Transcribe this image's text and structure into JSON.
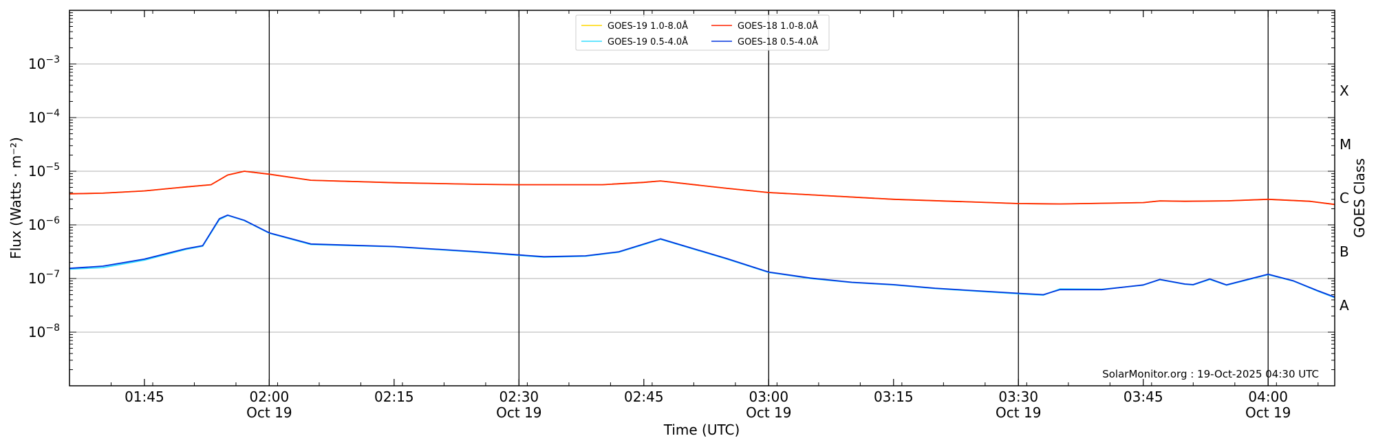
{
  "chart_data": {
    "type": "line",
    "xlabel": "Time (UTC)",
    "ylabel": "Flux (Watts · m⁻²)",
    "right_axis_label": "GOES Class",
    "y_scale": "log",
    "xlim": [
      "01:36",
      "04:08"
    ],
    "ylim": [
      1e-09,
      0.01
    ],
    "grid": "horizontal",
    "legend_position": "top-center",
    "credit": "SolarMonitor.org : 19-Oct-2025 04:30 UTC",
    "x_ticks": [
      {
        "time": "01:45",
        "label": "01:45",
        "sub": ""
      },
      {
        "time": "02:00",
        "label": "02:00",
        "sub": "Oct 19"
      },
      {
        "time": "02:15",
        "label": "02:15",
        "sub": ""
      },
      {
        "time": "02:30",
        "label": "02:30",
        "sub": "Oct 19"
      },
      {
        "time": "02:45",
        "label": "02:45",
        "sub": ""
      },
      {
        "time": "03:00",
        "label": "03:00",
        "sub": "Oct 19"
      },
      {
        "time": "03:15",
        "label": "03:15",
        "sub": ""
      },
      {
        "time": "03:30",
        "label": "03:30",
        "sub": "Oct 19"
      },
      {
        "time": "03:45",
        "label": "03:45",
        "sub": ""
      },
      {
        "time": "04:00",
        "label": "04:00",
        "sub": "Oct 19"
      }
    ],
    "day_lines": [
      "02:00",
      "02:30",
      "03:00",
      "03:30",
      "04:00"
    ],
    "y_ticks": [
      {
        "value": 0.001,
        "base": "10",
        "exp": "−3"
      },
      {
        "value": 0.0001,
        "base": "10",
        "exp": "−4"
      },
      {
        "value": 1e-05,
        "base": "10",
        "exp": "−5"
      },
      {
        "value": 1e-06,
        "base": "10",
        "exp": "−6"
      },
      {
        "value": 1e-07,
        "base": "10",
        "exp": "−7"
      },
      {
        "value": 1e-08,
        "base": "10",
        "exp": "−8"
      }
    ],
    "goes_classes": [
      {
        "label": "X",
        "value": 0.000316
      },
      {
        "label": "M",
        "value": 3.16e-05
      },
      {
        "label": "C",
        "value": 3.16e-06
      },
      {
        "label": "B",
        "value": 3.16e-07
      },
      {
        "label": "A",
        "value": 3.16e-08
      }
    ],
    "series": [
      {
        "name": "GOES-19 1.0-8.0Å",
        "color": "#ffd700",
        "x": [
          "01:36",
          "01:40",
          "01:45",
          "01:50",
          "01:53",
          "01:55",
          "01:57",
          "02:00",
          "02:05",
          "02:15",
          "02:25",
          "02:30",
          "02:40",
          "02:45",
          "02:47",
          "02:55",
          "03:00",
          "03:15",
          "03:30",
          "03:35",
          "03:45",
          "03:47",
          "03:50",
          "03:55",
          "04:00",
          "04:05",
          "04:08"
        ],
        "values": [
          3.8e-06,
          3.9e-06,
          4.3e-06,
          5.1e-06,
          5.6e-06,
          8.5e-06,
          1e-05,
          8.8e-06,
          6.8e-06,
          6.1e-06,
          5.7e-06,
          5.6e-06,
          5.6e-06,
          6.2e-06,
          6.6e-06,
          4.8e-06,
          4e-06,
          3e-06,
          2.5e-06,
          2.45e-06,
          2.6e-06,
          2.8e-06,
          2.75e-06,
          2.8e-06,
          3e-06,
          2.75e-06,
          2.4e-06
        ]
      },
      {
        "name": "GOES-19 0.5-4.0Å",
        "color": "#33ddff",
        "x": [
          "01:36",
          "01:40",
          "01:45",
          "01:50",
          "01:52",
          "01:54",
          "01:55",
          "01:57",
          "02:00",
          "02:05",
          "02:15",
          "02:25",
          "02:30",
          "02:33",
          "02:38",
          "02:42",
          "02:45",
          "02:47",
          "02:55",
          "03:00",
          "03:05",
          "03:10",
          "03:15",
          "03:20",
          "03:25",
          "03:30",
          "03:33",
          "03:35",
          "03:40",
          "03:45",
          "03:47",
          "03:50",
          "03:51",
          "03:53",
          "03:55",
          "04:00",
          "04:03",
          "04:06",
          "04:08"
        ],
        "values": [
          1.5e-07,
          1.6e-07,
          2.2e-07,
          3.5e-07,
          4e-07,
          1.25e-06,
          1.5e-06,
          1.2e-06,
          7e-07,
          4.3e-07,
          3.9e-07,
          3.1e-07,
          2.7e-07,
          2.5e-07,
          2.6e-07,
          3.1e-07,
          4.3e-07,
          5.4e-07,
          2.3e-07,
          1.3e-07,
          1e-07,
          8.4e-08,
          7.6e-08,
          6.5e-08,
          5.8e-08,
          5.2e-08,
          4.9e-08,
          6.4e-08,
          6.3e-08,
          7.5e-08,
          9.5e-08,
          7.8e-08,
          7.6e-08,
          9.6e-08,
          7.5e-08,
          1.18e-07,
          9e-08,
          5.8e-08,
          4.4e-08
        ]
      },
      {
        "name": "GOES-18 1.0-8.0Å",
        "color": "#ff2200",
        "x": [
          "01:36",
          "01:40",
          "01:45",
          "01:50",
          "01:53",
          "01:55",
          "01:57",
          "02:00",
          "02:05",
          "02:15",
          "02:25",
          "02:30",
          "02:40",
          "02:45",
          "02:47",
          "02:55",
          "03:00",
          "03:15",
          "03:30",
          "03:35",
          "03:45",
          "03:47",
          "03:50",
          "03:55",
          "04:00",
          "04:05",
          "04:08"
        ],
        "values": [
          3.8e-06,
          3.9e-06,
          4.3e-06,
          5.1e-06,
          5.6e-06,
          8.5e-06,
          1e-05,
          8.8e-06,
          6.8e-06,
          6.1e-06,
          5.7e-06,
          5.6e-06,
          5.6e-06,
          6.2e-06,
          6.6e-06,
          4.8e-06,
          4e-06,
          3e-06,
          2.5e-06,
          2.45e-06,
          2.6e-06,
          2.8e-06,
          2.75e-06,
          2.8e-06,
          3e-06,
          2.75e-06,
          2.4e-06
        ]
      },
      {
        "name": "GOES-18 0.5-4.0Å",
        "color": "#0033dd",
        "x": [
          "01:36",
          "01:40",
          "01:45",
          "01:50",
          "01:52",
          "01:54",
          "01:55",
          "01:57",
          "02:00",
          "02:05",
          "02:15",
          "02:25",
          "02:30",
          "02:33",
          "02:38",
          "02:42",
          "02:45",
          "02:47",
          "02:55",
          "03:00",
          "03:05",
          "03:10",
          "03:15",
          "03:20",
          "03:25",
          "03:30",
          "03:33",
          "03:35",
          "03:40",
          "03:45",
          "03:47",
          "03:50",
          "03:51",
          "03:53",
          "03:55",
          "04:00",
          "04:03",
          "04:06",
          "04:08"
        ],
        "values": [
          1.55e-07,
          1.7e-07,
          2.3e-07,
          3.6e-07,
          4.1e-07,
          1.3e-06,
          1.52e-06,
          1.22e-06,
          7.1e-07,
          4.4e-07,
          3.95e-07,
          3.15e-07,
          2.75e-07,
          2.55e-07,
          2.65e-07,
          3.15e-07,
          4.4e-07,
          5.5e-07,
          2.35e-07,
          1.32e-07,
          1.02e-07,
          8.5e-08,
          7.7e-08,
          6.6e-08,
          5.9e-08,
          5.3e-08,
          5e-08,
          6.2e-08,
          6.2e-08,
          7.6e-08,
          9.6e-08,
          7.9e-08,
          7.7e-08,
          9.8e-08,
          7.6e-08,
          1.2e-07,
          9.1e-08,
          5.9e-08,
          4.5e-08
        ]
      }
    ],
    "legend_order": [
      0,
      1,
      2,
      3
    ]
  }
}
